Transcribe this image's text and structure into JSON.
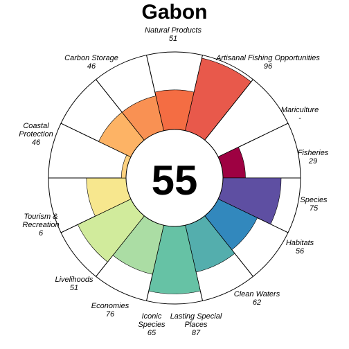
{
  "chart_data": {
    "type": "flower",
    "title": "Gabon",
    "overall_score": "55",
    "max": 100,
    "petals": [
      {
        "name": "Natural Products",
        "value": 51,
        "value_label": "51",
        "color": "#f46d43"
      },
      {
        "name": "Artisanal Fishing Opportunities",
        "value": 96,
        "value_label": "96",
        "color": "#e8594b"
      },
      {
        "name": "Mariculture",
        "value": null,
        "value_label": "-",
        "color": "#d53e4f"
      },
      {
        "name": "Fisheries",
        "value": 29,
        "value_label": "29",
        "color": "#9e0142"
      },
      {
        "name": "Species",
        "value": 75,
        "value_label": "75",
        "color": "#5e4fa2"
      },
      {
        "name": "Habitats",
        "value": 56,
        "value_label": "56",
        "color": "#3288bd"
      },
      {
        "name": "Clean Waters",
        "value": 62,
        "value_label": "62",
        "color": "#54aead"
      },
      {
        "name": "Lasting Special Places",
        "value": 87,
        "value_label": "87",
        "color": "#66c2a5"
      },
      {
        "name": "Iconic Species",
        "value": 65,
        "value_label": "65",
        "color": "#abdda4"
      },
      {
        "name": "Economies",
        "value": 76,
        "value_label": "76",
        "color": "#d1eb9c"
      },
      {
        "name": "Livelihoods",
        "value": 51,
        "value_label": "51",
        "color": "#f7e78e"
      },
      {
        "name": "Tourism & Recreation",
        "value": 6,
        "value_label": "6",
        "color": "#fdd17f"
      },
      {
        "name": "Coastal Protection",
        "value": 46,
        "value_label": "46",
        "color": "#fdb365"
      },
      {
        "name": "Carbon Storage",
        "value": 46,
        "value_label": "46",
        "color": "#f99153"
      }
    ]
  }
}
